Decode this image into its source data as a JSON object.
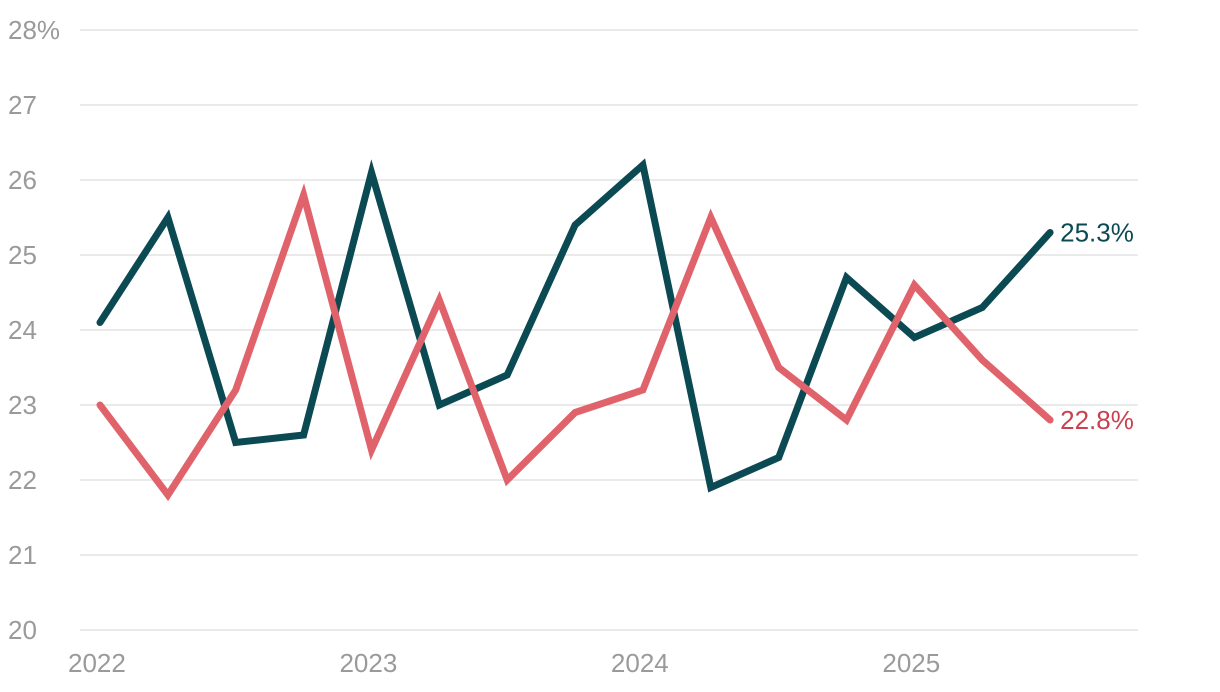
{
  "chart_data": {
    "type": "line",
    "title": "",
    "xlabel": "",
    "ylabel": "",
    "y_unit_suffix": "%",
    "ylim": [
      20,
      28
    ],
    "yticks": [
      20,
      21,
      22,
      23,
      24,
      25,
      26,
      27,
      28
    ],
    "ytick_labels": [
      "20",
      "21",
      "22",
      "23",
      "24",
      "25",
      "26",
      "27",
      "28%"
    ],
    "xticks": [
      2022,
      2023,
      2024,
      2025
    ],
    "xtick_labels": [
      "2022",
      "2023",
      "2024",
      "2025"
    ],
    "xlim": [
      2022,
      2025.75
    ],
    "grid": true,
    "legend": "none",
    "x": [
      2022.0,
      2022.25,
      2022.5,
      2022.75,
      2023.0,
      2023.25,
      2023.5,
      2023.75,
      2024.0,
      2024.25,
      2024.5,
      2024.75,
      2025.0,
      2025.25,
      2025.5
    ],
    "series": [
      {
        "color": "#0b4a52",
        "values": [
          24.1,
          25.5,
          22.5,
          22.6,
          26.1,
          23.0,
          23.4,
          25.4,
          26.2,
          21.9,
          22.3,
          24.7,
          23.9,
          24.3,
          25.3
        ],
        "end_label": "25.3%"
      },
      {
        "color": "#e0636c",
        "label_color": "#c9414e",
        "values": [
          23.0,
          21.8,
          23.2,
          25.8,
          22.4,
          24.4,
          22.0,
          22.9,
          23.2,
          25.5,
          23.5,
          22.8,
          24.6,
          23.6,
          22.8
        ],
        "end_label": "22.8%"
      }
    ]
  }
}
